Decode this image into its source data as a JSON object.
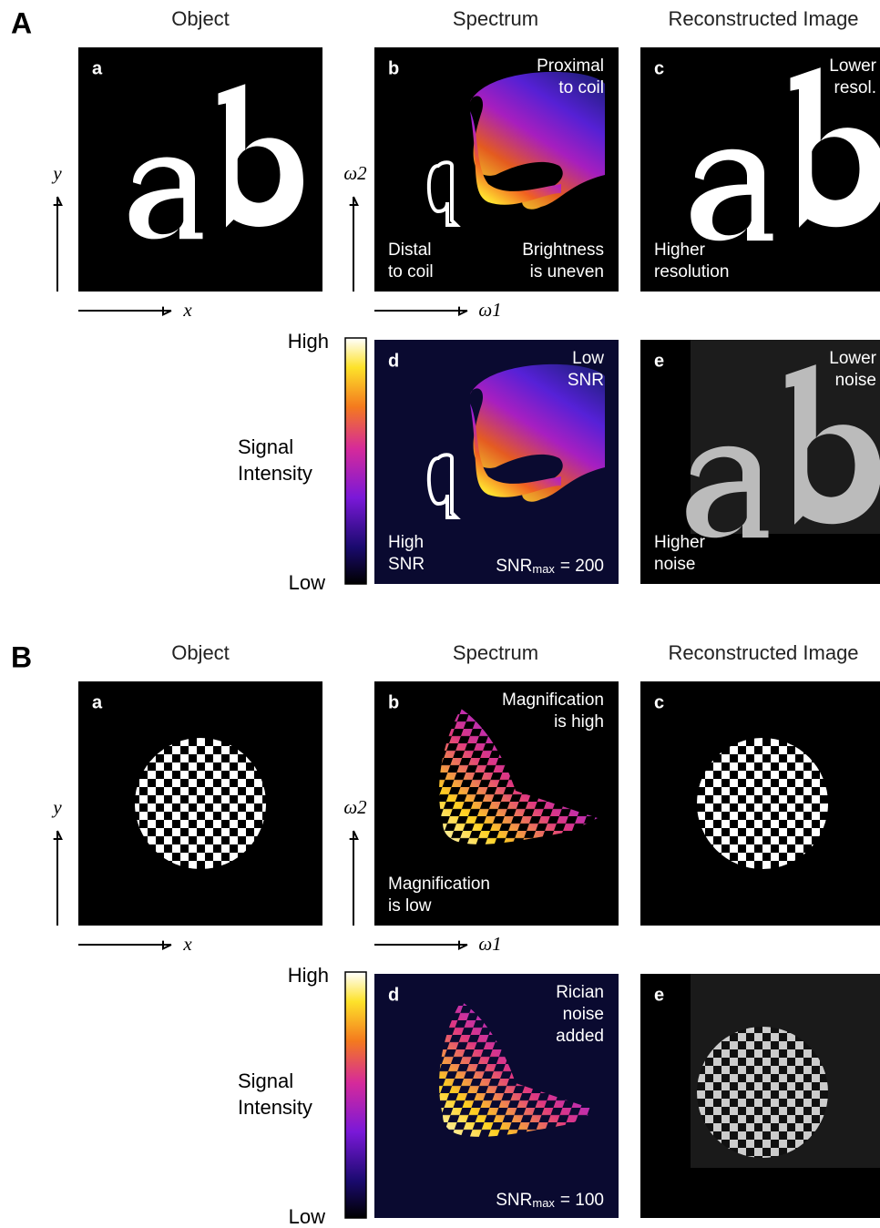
{
  "sections": [
    {
      "label": "A",
      "column_titles": [
        "Object",
        "Spectrum",
        "Reconstructed Image"
      ],
      "axes": {
        "y": "y",
        "x": "x",
        "w2": "ω2",
        "w1": "ω1"
      },
      "colorbar": {
        "high": "High",
        "label": [
          "Signal",
          "Intensity"
        ],
        "low": "Low"
      },
      "panels": [
        {
          "letter": "a"
        },
        {
          "letter": "b",
          "top_right": [
            "Proximal",
            "to coil"
          ],
          "bottom_left": [
            "Distal",
            "to coil"
          ],
          "bottom_right": [
            "Brightness",
            "is uneven"
          ]
        },
        {
          "letter": "c",
          "top_right": [
            "Lower",
            "resol."
          ],
          "bottom_left": [
            "Higher",
            "resolution"
          ]
        },
        {
          "letter": "d",
          "top_right": [
            "Low",
            "SNR"
          ],
          "bottom_left": [
            "High",
            "SNR"
          ],
          "snr": [
            "SNR",
            "max",
            "= 200"
          ]
        },
        {
          "letter": "e",
          "top_right": [
            "Lower",
            "noise"
          ],
          "bottom_left": [
            "Higher",
            "noise"
          ]
        }
      ]
    },
    {
      "label": "B",
      "column_titles": [
        "Object",
        "Spectrum",
        "Reconstructed Image"
      ],
      "axes": {
        "y": "y",
        "x": "x",
        "w2": "ω2",
        "w1": "ω1"
      },
      "colorbar": {
        "high": "High",
        "label": [
          "Signal",
          "Intensity"
        ],
        "low": "Low"
      },
      "panels": [
        {
          "letter": "a"
        },
        {
          "letter": "b",
          "top_right": [
            "Magnification",
            "is high"
          ],
          "bottom_left": [
            "Magnification",
            "is low"
          ]
        },
        {
          "letter": "c"
        },
        {
          "letter": "d",
          "top_right": [
            "Rician",
            "noise",
            "added"
          ],
          "snr": [
            "SNR",
            "max",
            "= 100"
          ]
        },
        {
          "letter": "e"
        }
      ]
    }
  ]
}
